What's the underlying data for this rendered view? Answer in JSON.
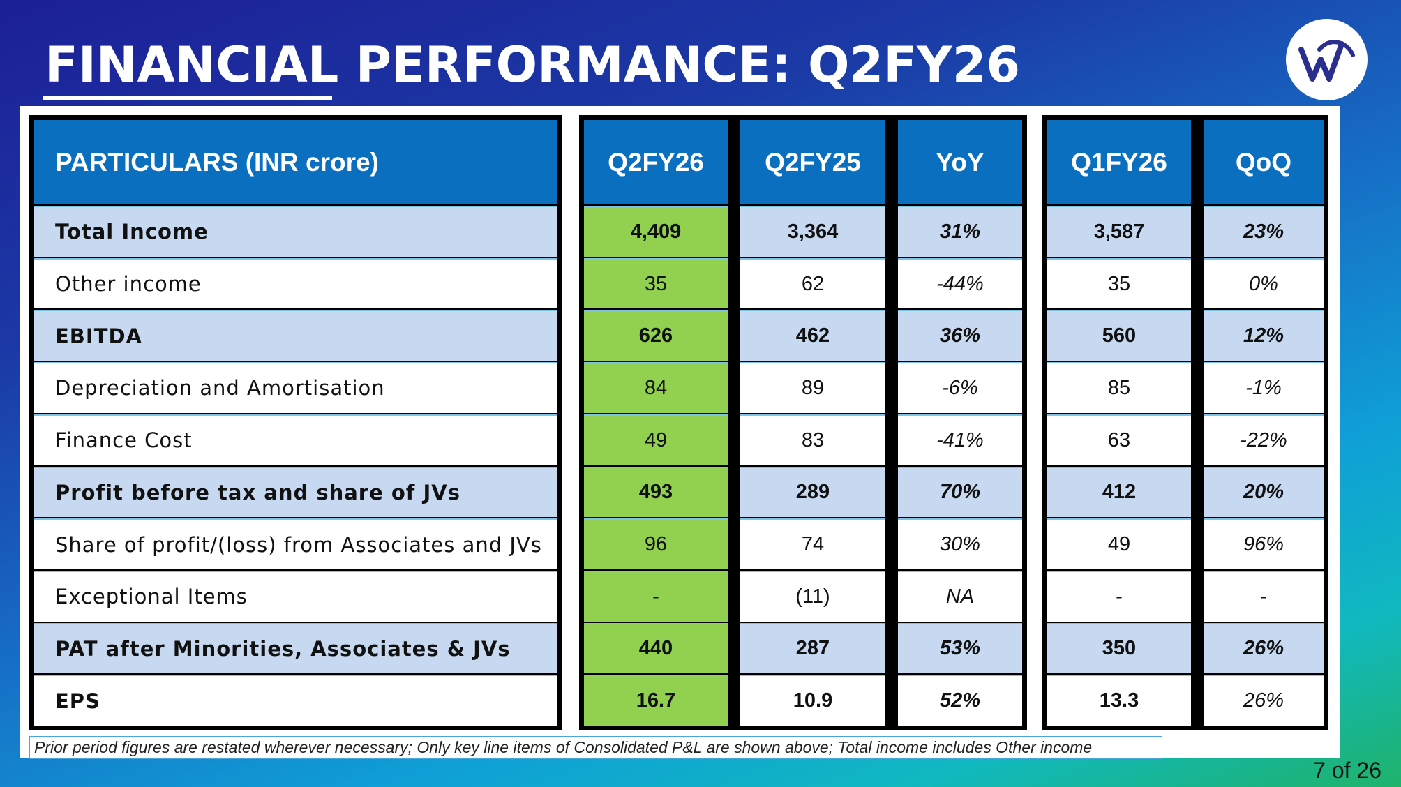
{
  "slide": {
    "title": "FINANCIAL PERFORMANCE: Q2FY26",
    "page_number": "7 of 26",
    "footnote": "Prior period figures are restated wherever necessary; Only key line items of Consolidated P&L are shown above; Total income includes Other income",
    "logo_icon": "company-logo-icon"
  },
  "colors": {
    "header_blue": "#0b6fc0",
    "row_shade": "#c7d9f0",
    "highlight_green": "#92d050"
  },
  "table": {
    "headers": [
      "PARTICULARS (INR crore)",
      "Q2FY26",
      "Q2FY25",
      "YoY",
      "Q1FY26",
      "QoQ"
    ],
    "rows": [
      {
        "label": "Total Income",
        "q2fy26": "4,409",
        "q2fy25": "3,364",
        "yoy": "31%",
        "q1fy26": "3,587",
        "qoq": "23%"
      },
      {
        "label": "Other income",
        "q2fy26": "35",
        "q2fy25": "62",
        "yoy": "-44%",
        "q1fy26": "35",
        "qoq": "0%"
      },
      {
        "label": "EBITDA",
        "q2fy26": "626",
        "q2fy25": "462",
        "yoy": "36%",
        "q1fy26": "560",
        "qoq": "12%"
      },
      {
        "label": "Depreciation and Amortisation",
        "q2fy26": "84",
        "q2fy25": "89",
        "yoy": "-6%",
        "q1fy26": "85",
        "qoq": "-1%"
      },
      {
        "label": "Finance Cost",
        "q2fy26": "49",
        "q2fy25": "83",
        "yoy": "-41%",
        "q1fy26": "63",
        "qoq": "-22%"
      },
      {
        "label": "Profit before tax and share of JVs",
        "q2fy26": "493",
        "q2fy25": "289",
        "yoy": "70%",
        "q1fy26": "412",
        "qoq": "20%"
      },
      {
        "label": "Share of profit/(loss) from Associates and JVs",
        "q2fy26": "96",
        "q2fy25": "74",
        "yoy": "30%",
        "q1fy26": "49",
        "qoq": "96%"
      },
      {
        "label": "Exceptional Items",
        "q2fy26": "-",
        "q2fy25": "(11)",
        "yoy": "NA",
        "q1fy26": "-",
        "qoq": "-"
      },
      {
        "label": "PAT after Minorities, Associates & JVs",
        "q2fy26": "440",
        "q2fy25": "287",
        "yoy": "53%",
        "q1fy26": "350",
        "qoq": "26%"
      },
      {
        "label": "EPS",
        "q2fy26": "16.7",
        "q2fy25": "10.9",
        "yoy": "52%",
        "q1fy26": "13.3",
        "qoq": "26%"
      }
    ]
  }
}
